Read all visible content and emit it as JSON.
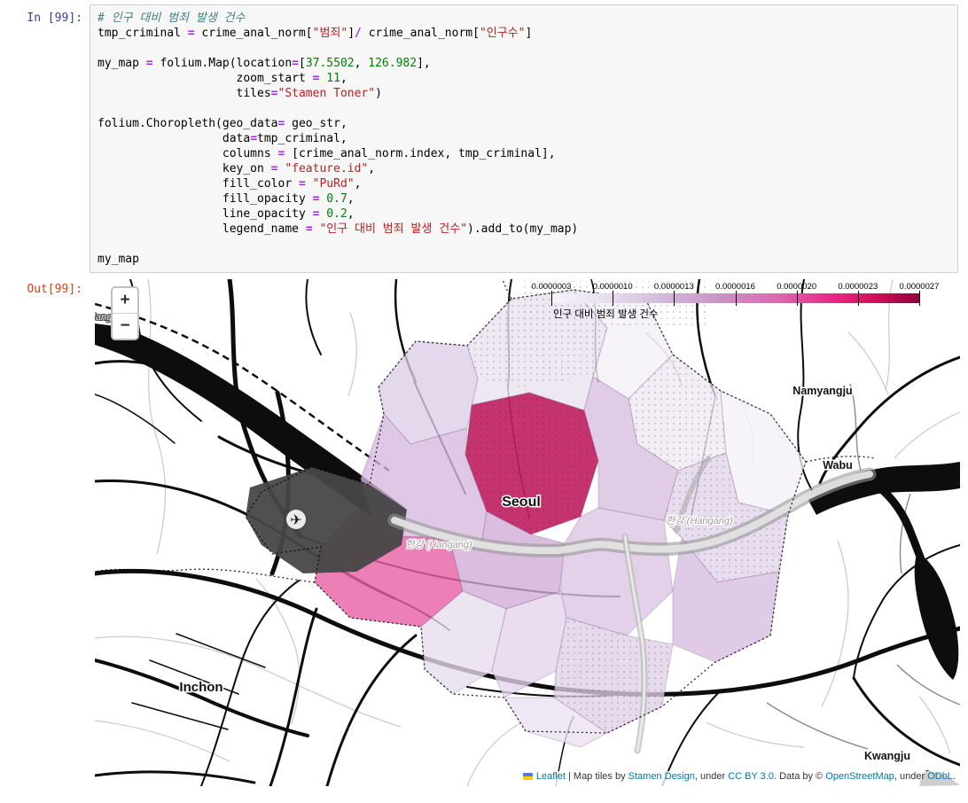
{
  "notebook": {
    "input_prompt": "In [99]:",
    "output_prompt": "Out[99]:",
    "code_lines": [
      [
        [
          "c",
          "# 인구 대비 범죄 발생 건수"
        ]
      ],
      [
        [
          "p",
          "tmp_criminal "
        ],
        [
          "o",
          "="
        ],
        [
          "p",
          " crime_anal_norm["
        ],
        [
          "s",
          "\"범죄\""
        ],
        [
          "p",
          "]"
        ],
        [
          "o",
          "/"
        ],
        [
          "p",
          " crime_anal_norm["
        ],
        [
          "s",
          "\"인구수\""
        ],
        [
          "p",
          "]"
        ]
      ],
      [],
      [
        [
          "p",
          "my_map "
        ],
        [
          "o",
          "="
        ],
        [
          "p",
          " folium.Map(location"
        ],
        [
          "o",
          "="
        ],
        [
          "p",
          "["
        ],
        [
          "n",
          "37.5502"
        ],
        [
          "p",
          ", "
        ],
        [
          "n",
          "126.982"
        ],
        [
          "p",
          "],"
        ]
      ],
      [
        [
          "p",
          "                    zoom_start "
        ],
        [
          "o",
          "="
        ],
        [
          "p",
          " "
        ],
        [
          "n",
          "11"
        ],
        [
          "p",
          ","
        ]
      ],
      [
        [
          "p",
          "                    tiles"
        ],
        [
          "o",
          "="
        ],
        [
          "s",
          "\"Stamen Toner\""
        ],
        [
          "p",
          ")"
        ]
      ],
      [],
      [
        [
          "p",
          "folium.Choropleth(geo_data"
        ],
        [
          "o",
          "="
        ],
        [
          "p",
          " geo_str,"
        ]
      ],
      [
        [
          "p",
          "                  data"
        ],
        [
          "o",
          "="
        ],
        [
          "p",
          "tmp_criminal,"
        ]
      ],
      [
        [
          "p",
          "                  columns "
        ],
        [
          "o",
          "="
        ],
        [
          "p",
          " [crime_anal_norm.index, tmp_criminal],"
        ]
      ],
      [
        [
          "p",
          "                  key_on "
        ],
        [
          "o",
          "="
        ],
        [
          "p",
          " "
        ],
        [
          "s",
          "\"feature.id\""
        ],
        [
          "p",
          ","
        ]
      ],
      [
        [
          "p",
          "                  fill_color "
        ],
        [
          "o",
          "="
        ],
        [
          "p",
          " "
        ],
        [
          "s",
          "\"PuRd\""
        ],
        [
          "p",
          ","
        ]
      ],
      [
        [
          "p",
          "                  fill_opacity "
        ],
        [
          "o",
          "="
        ],
        [
          "p",
          " "
        ],
        [
          "n",
          "0.7"
        ],
        [
          "p",
          ","
        ]
      ],
      [
        [
          "p",
          "                  line_opacity "
        ],
        [
          "o",
          "="
        ],
        [
          "p",
          " "
        ],
        [
          "n",
          "0.2"
        ],
        [
          "p",
          ","
        ]
      ],
      [
        [
          "p",
          "                  legend_name "
        ],
        [
          "o",
          "="
        ],
        [
          "p",
          " "
        ],
        [
          "s",
          "\"인구 대비 범죄 발생 건수\""
        ],
        [
          "p",
          ").add_to(my_map)"
        ]
      ],
      [],
      [
        [
          "p",
          "my_map"
        ]
      ]
    ]
  },
  "map": {
    "zoom_in_label": "+",
    "zoom_out_label": "−",
    "legend": {
      "ticks": [
        "0.0000003",
        "0.0000010",
        "0.0000013",
        "0.0000016",
        "0.0000020",
        "0.0000023",
        "0.0000027"
      ],
      "caption": "인구 대비 범죄 발생 건수"
    },
    "labels": {
      "seoul": "Seoul",
      "inchon": "Inchon",
      "namyangju": "Namyangju",
      "wabu": "Wabu",
      "kwangju": "Kwangju",
      "hangang_center": "한강 (Hangang)",
      "hangang_east": "한강 (Hangang)",
      "hangang_west": "한강 (Hangang)"
    },
    "attribution": {
      "parts": [
        {
          "text": "Leaflet",
          "link": true
        },
        {
          "text": " | ",
          "link": false
        },
        {
          "text": "Map tiles by ",
          "link": false
        },
        {
          "text": "Stamen Design",
          "link": true
        },
        {
          "text": ", under ",
          "link": false
        },
        {
          "text": "CC BY 3.0",
          "link": true
        },
        {
          "text": ". Data by © ",
          "link": false
        },
        {
          "text": "OpenStreetMap",
          "link": true
        },
        {
          "text": ", under ",
          "link": false
        },
        {
          "text": "ODbL",
          "link": true
        },
        {
          "text": ".",
          "link": false
        }
      ]
    },
    "colors": {
      "fill_palette": "PuRd",
      "legend_gradient": [
        "#f7f4f9",
        "#e7e1ef",
        "#d4b9da",
        "#c994c7",
        "#df65b0",
        "#e7298a",
        "#ce1256",
        "#91003f"
      ],
      "high_value_fill": "#c01e60",
      "highlight_pink": "#e75fa4"
    }
  }
}
